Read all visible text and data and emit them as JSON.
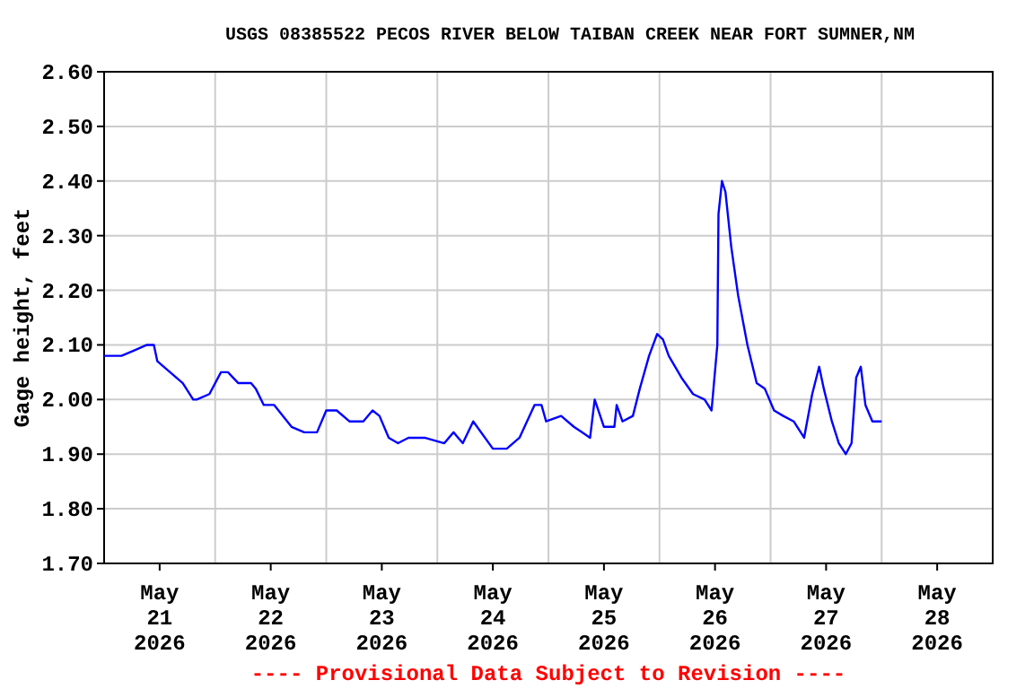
{
  "chart_data": {
    "type": "line",
    "title": "USGS 08385522 PECOS RIVER BELOW TAIBAN CREEK NEAR FORT SUMNER,NM",
    "ylabel": "Gage height, feet",
    "annotations": [
      "---- Provisional Data Subject to Revision ----"
    ],
    "xlim": [
      "2026-05-20T12:00",
      "2026-05-28T12:00"
    ],
    "xticks": [
      {
        "value": "2026-05-21T00:00",
        "label": "May\n21\n2026"
      },
      {
        "value": "2026-05-21T12:00",
        "label": null
      },
      {
        "value": "2026-05-22T00:00",
        "label": "May\n22\n2026"
      },
      {
        "value": "2026-05-22T12:00",
        "label": null
      },
      {
        "value": "2026-05-23T00:00",
        "label": "May\n23\n2026"
      },
      {
        "value": "2026-05-23T12:00",
        "label": null
      },
      {
        "value": "2026-05-24T00:00",
        "label": "May\n24\n2026"
      },
      {
        "value": "2026-05-24T12:00",
        "label": null
      },
      {
        "value": "2026-05-25T00:00",
        "label": "May\n25\n2026"
      },
      {
        "value": "2026-05-25T12:00",
        "label": null
      },
      {
        "value": "2026-05-26T00:00",
        "label": "May\n26\n2026"
      },
      {
        "value": "2026-05-26T12:00",
        "label": null
      },
      {
        "value": "2026-05-27T00:00",
        "label": "May\n27\n2026"
      },
      {
        "value": "2026-05-27T12:00",
        "label": null
      },
      {
        "value": "2026-05-28T00:00",
        "label": "May\n28\n2026"
      }
    ],
    "ylim": [
      1.7,
      2.6
    ],
    "yticks": [
      {
        "value": 1.7,
        "label": "1.70"
      },
      {
        "value": 1.8,
        "label": "1.80"
      },
      {
        "value": 1.9,
        "label": "1.90"
      },
      {
        "value": 2.0,
        "label": "2.00"
      },
      {
        "value": 2.1,
        "label": "2.10"
      },
      {
        "value": 2.2,
        "label": "2.20"
      },
      {
        "value": 2.3,
        "label": "2.30"
      },
      {
        "value": 2.4,
        "label": "2.40"
      },
      {
        "value": 2.5,
        "label": "2.50"
      },
      {
        "value": 2.6,
        "label": "2.60"
      }
    ],
    "grid": true,
    "marker": "none",
    "line_style": "solid",
    "series": [
      {
        "color": "#0000ff",
        "x": [
          "2026-05-20T12:00",
          "2026-05-20T15:45",
          "2026-05-20T18:30",
          "2026-05-20T21:15",
          "2026-05-20T22:45",
          "2026-05-20T23:30",
          "2026-05-21T02:15",
          "2026-05-21T05:00",
          "2026-05-21T07:15",
          "2026-05-21T08:00",
          "2026-05-21T10:45",
          "2026-05-21T13:15",
          "2026-05-21T14:45",
          "2026-05-21T17:00",
          "2026-05-21T19:45",
          "2026-05-21T20:45",
          "2026-05-21T22:30",
          "2026-05-22T00:45",
          "2026-05-22T04:30",
          "2026-05-22T07:15",
          "2026-05-22T10:00",
          "2026-05-22T12:00",
          "2026-05-22T14:15",
          "2026-05-22T17:00",
          "2026-05-22T20:00",
          "2026-05-22T22:00",
          "2026-05-22T23:30",
          "2026-05-23T01:30",
          "2026-05-23T03:30",
          "2026-05-23T05:45",
          "2026-05-23T09:15",
          "2026-05-23T13:30",
          "2026-05-23T15:30",
          "2026-05-23T17:30",
          "2026-05-23T19:45",
          "2026-05-24T00:00",
          "2026-05-24T03:00",
          "2026-05-24T05:45",
          "2026-05-24T09:00",
          "2026-05-24T10:30",
          "2026-05-24T11:30",
          "2026-05-24T14:45",
          "2026-05-24T17:30",
          "2026-05-24T19:15",
          "2026-05-24T21:00",
          "2026-05-24T22:00",
          "2026-05-25T00:00",
          "2026-05-25T02:15",
          "2026-05-25T02:45",
          "2026-05-25T04:00",
          "2026-05-25T06:15",
          "2026-05-25T07:45",
          "2026-05-25T09:45",
          "2026-05-25T11:30",
          "2026-05-25T12:45",
          "2026-05-25T14:00",
          "2026-05-25T16:45",
          "2026-05-25T19:15",
          "2026-05-25T21:45",
          "2026-05-25T23:15",
          "2026-05-26T00:30",
          "2026-05-26T00:45",
          "2026-05-26T01:30",
          "2026-05-26T02:15",
          "2026-05-26T03:30",
          "2026-05-26T05:00",
          "2026-05-26T07:00",
          "2026-05-26T09:00",
          "2026-05-26T10:45",
          "2026-05-26T12:45",
          "2026-05-26T14:45",
          "2026-05-26T17:00",
          "2026-05-26T19:15",
          "2026-05-26T21:00",
          "2026-05-26T22:30",
          "2026-05-26T23:30",
          "2026-05-27T01:15",
          "2026-05-27T02:45",
          "2026-05-27T04:15",
          "2026-05-27T05:30",
          "2026-05-27T06:30",
          "2026-05-27T07:30",
          "2026-05-27T08:30",
          "2026-05-27T10:00",
          "2026-05-27T12:00"
        ],
        "values": [
          2.08,
          2.08,
          2.09,
          2.1,
          2.1,
          2.07,
          2.05,
          2.03,
          2.0,
          2.0,
          2.01,
          2.05,
          2.05,
          2.03,
          2.03,
          2.02,
          1.99,
          1.99,
          1.95,
          1.94,
          1.94,
          1.98,
          1.98,
          1.96,
          1.96,
          1.98,
          1.97,
          1.93,
          1.92,
          1.93,
          1.93,
          1.92,
          1.94,
          1.92,
          1.96,
          1.91,
          1.91,
          1.93,
          1.99,
          1.99,
          1.96,
          1.97,
          1.95,
          1.94,
          1.93,
          2.0,
          1.95,
          1.95,
          1.99,
          1.96,
          1.97,
          2.02,
          2.08,
          2.12,
          2.11,
          2.08,
          2.04,
          2.01,
          2.0,
          1.98,
          2.1,
          2.34,
          2.4,
          2.38,
          2.28,
          2.19,
          2.1,
          2.03,
          2.02,
          1.98,
          1.97,
          1.96,
          1.93,
          2.01,
          2.06,
          2.02,
          1.96,
          1.92,
          1.9,
          1.92,
          2.04,
          2.06,
          1.99,
          1.96,
          1.96
        ]
      }
    ]
  }
}
